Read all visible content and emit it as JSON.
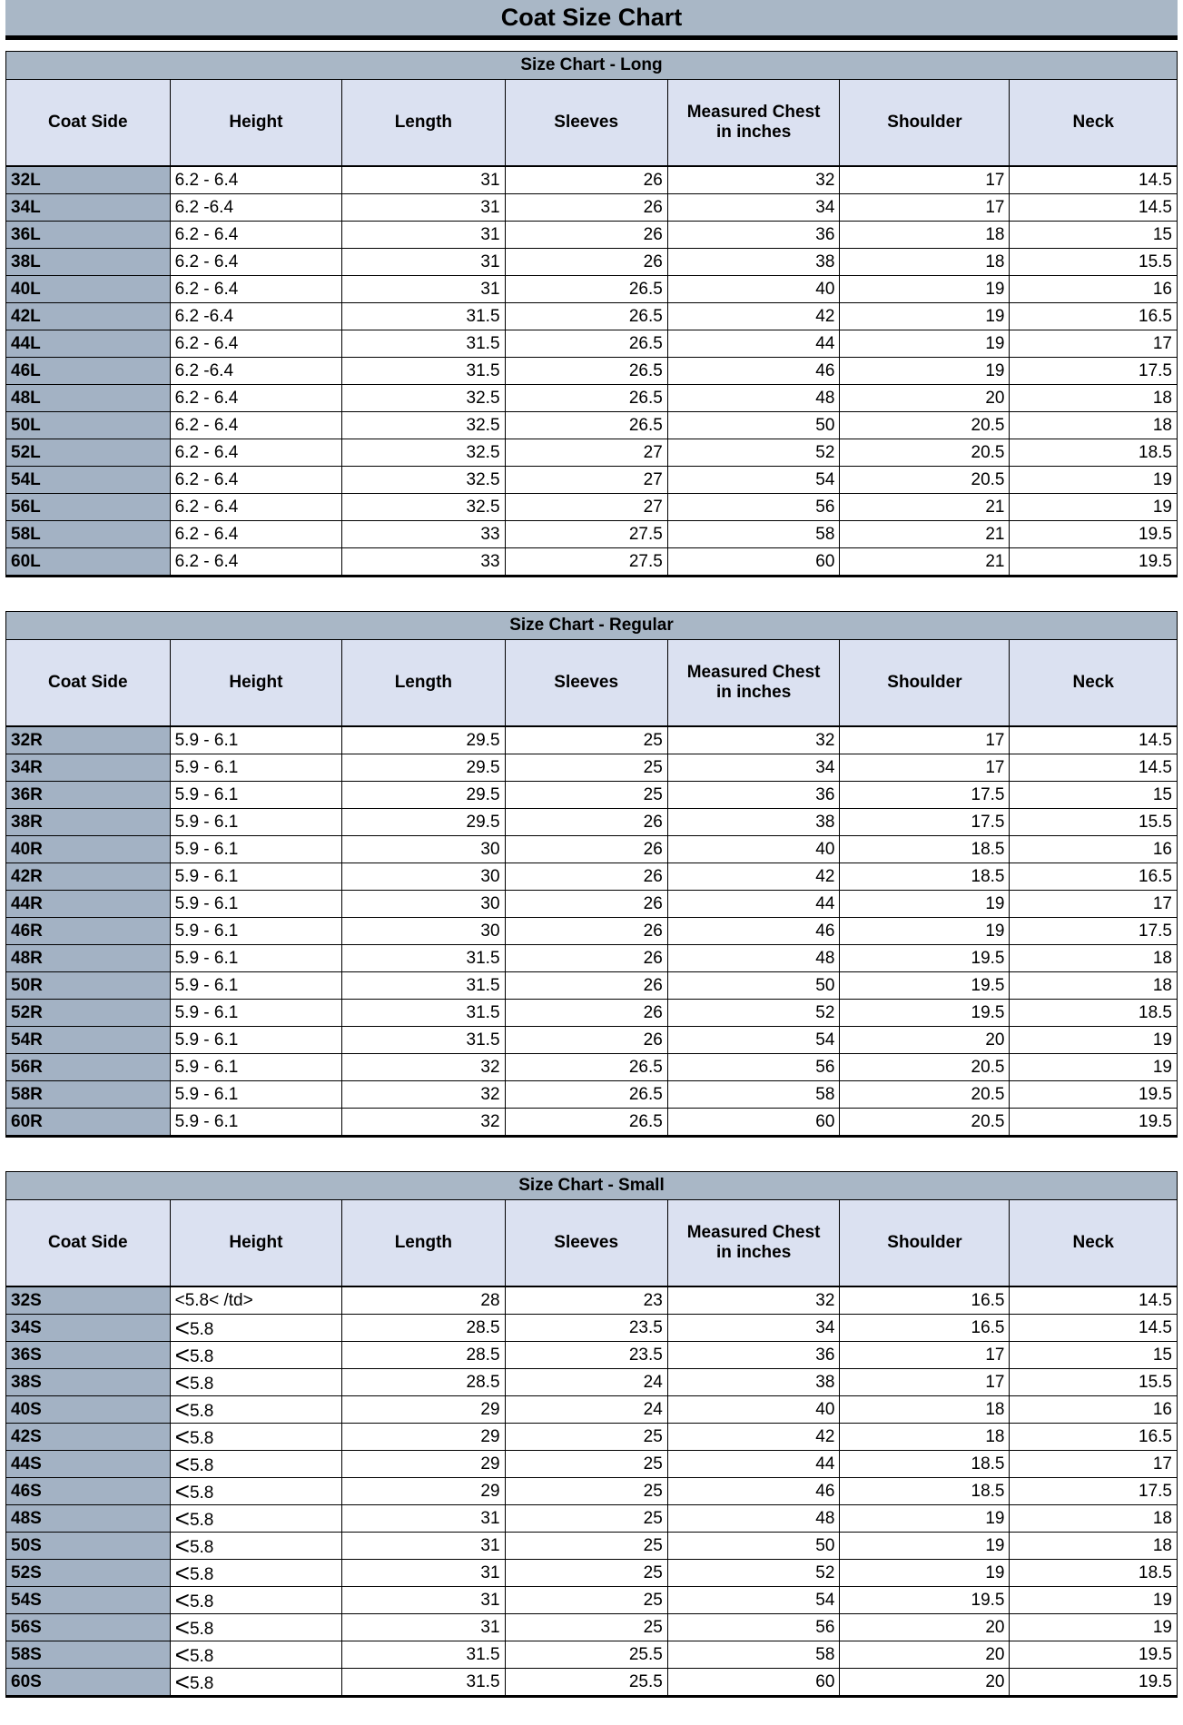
{
  "page_title": "Coat Size Chart",
  "colors": {
    "band_background": "#a9b7c6",
    "column_header_background": "#dbe1f1",
    "row_header_background": "#a3b2c4",
    "border": "#000000",
    "page_background": "#ffffff",
    "text": "#000000"
  },
  "chart_data": [
    {
      "type": "table",
      "title": "Size Chart - Long",
      "columns": [
        "Coat Side",
        "Height",
        "Length",
        "Sleeves",
        "Measured Chest in inches",
        "Shoulder",
        "Neck"
      ],
      "rows": [
        [
          "32L",
          "6.2 - 6.4",
          "31",
          "26",
          "32",
          "17",
          "14.5"
        ],
        [
          "34L",
          "6.2 -6.4",
          "31",
          "26",
          "34",
          "17",
          "14.5"
        ],
        [
          "36L",
          "6.2 - 6.4",
          "31",
          "26",
          "36",
          "18",
          "15"
        ],
        [
          "38L",
          "6.2 - 6.4",
          "31",
          "26",
          "38",
          "18",
          "15.5"
        ],
        [
          "40L",
          "6.2 - 6.4",
          "31",
          "26.5",
          "40",
          "19",
          "16"
        ],
        [
          "42L",
          "6.2 -6.4",
          "31.5",
          "26.5",
          "42",
          "19",
          "16.5"
        ],
        [
          "44L",
          "6.2 - 6.4",
          "31.5",
          "26.5",
          "44",
          "19",
          "17"
        ],
        [
          "46L",
          "6.2 -6.4",
          "31.5",
          "26.5",
          "46",
          "19",
          "17.5"
        ],
        [
          "48L",
          "6.2 - 6.4",
          "32.5",
          "26.5",
          "48",
          "20",
          "18"
        ],
        [
          "50L",
          "6.2 - 6.4",
          "32.5",
          "26.5",
          "50",
          "20.5",
          "18"
        ],
        [
          "52L",
          "6.2 - 6.4",
          "32.5",
          "27",
          "52",
          "20.5",
          "18.5"
        ],
        [
          "54L",
          "6.2 - 6.4",
          "32.5",
          "27",
          "54",
          "20.5",
          "19"
        ],
        [
          "56L",
          "6.2 - 6.4",
          "32.5",
          "27",
          "56",
          "21",
          "19"
        ],
        [
          "58L",
          "6.2 - 6.4",
          "33",
          "27.5",
          "58",
          "21",
          "19.5"
        ],
        [
          "60L",
          "6.2 - 6.4",
          "33",
          "27.5",
          "60",
          "21",
          "19.5"
        ]
      ]
    },
    {
      "type": "table",
      "title": "Size Chart - Regular",
      "columns": [
        "Coat Side",
        "Height",
        "Length",
        "Sleeves",
        "Measured Chest in inches",
        "Shoulder",
        "Neck"
      ],
      "rows": [
        [
          "32R",
          "5.9 - 6.1",
          "29.5",
          "25",
          "32",
          "17",
          "14.5"
        ],
        [
          "34R",
          "5.9 - 6.1",
          "29.5",
          "25",
          "34",
          "17",
          "14.5"
        ],
        [
          "36R",
          "5.9 - 6.1",
          "29.5",
          "25",
          "36",
          "17.5",
          "15"
        ],
        [
          "38R",
          "5.9 - 6.1",
          "29.5",
          "26",
          "38",
          "17.5",
          "15.5"
        ],
        [
          "40R",
          "5.9 - 6.1",
          "30",
          "26",
          "40",
          "18.5",
          "16"
        ],
        [
          "42R",
          "5.9 - 6.1",
          "30",
          "26",
          "42",
          "18.5",
          "16.5"
        ],
        [
          "44R",
          "5.9 - 6.1",
          "30",
          "26",
          "44",
          "19",
          "17"
        ],
        [
          "46R",
          "5.9 - 6.1",
          "30",
          "26",
          "46",
          "19",
          "17.5"
        ],
        [
          "48R",
          "5.9 - 6.1",
          "31.5",
          "26",
          "48",
          "19.5",
          "18"
        ],
        [
          "50R",
          "5.9 - 6.1",
          "31.5",
          "26",
          "50",
          "19.5",
          "18"
        ],
        [
          "52R",
          "5.9 - 6.1",
          "31.5",
          "26",
          "52",
          "19.5",
          "18.5"
        ],
        [
          "54R",
          "5.9 - 6.1",
          "31.5",
          "26",
          "54",
          "20",
          "19"
        ],
        [
          "56R",
          "5.9 - 6.1",
          "32",
          "26.5",
          "56",
          "20.5",
          "19"
        ],
        [
          "58R",
          "5.9 - 6.1",
          "32",
          "26.5",
          "58",
          "20.5",
          "19.5"
        ],
        [
          "60R",
          "5.9 - 6.1",
          "32",
          "26.5",
          "60",
          "20.5",
          "19.5"
        ]
      ]
    },
    {
      "type": "table",
      "title": "Size Chart - Small",
      "columns": [
        "Coat Side",
        "Height",
        "Length",
        "Sleeves",
        "Measured Chest in inches",
        "Shoulder",
        "Neck"
      ],
      "rows": [
        [
          "32S",
          "<5.8< /td>",
          "28",
          "23",
          "32",
          "16.5",
          "14.5"
        ],
        [
          "34S",
          "<5.8",
          "28.5",
          "23.5",
          "34",
          "16.5",
          "14.5"
        ],
        [
          "36S",
          "<5.8",
          "28.5",
          "23.5",
          "36",
          "17",
          "15"
        ],
        [
          "38S",
          "<5.8",
          "28.5",
          "24",
          "38",
          "17",
          "15.5"
        ],
        [
          "40S",
          "<5.8",
          "29",
          "24",
          "40",
          "18",
          "16"
        ],
        [
          "42S",
          "<5.8",
          "29",
          "25",
          "42",
          "18",
          "16.5"
        ],
        [
          "44S",
          "<5.8",
          "29",
          "25",
          "44",
          "18.5",
          "17"
        ],
        [
          "46S",
          "<5.8",
          "29",
          "25",
          "46",
          "18.5",
          "17.5"
        ],
        [
          "48S",
          "<5.8",
          "31",
          "25",
          "48",
          "19",
          "18"
        ],
        [
          "50S",
          "<5.8",
          "31",
          "25",
          "50",
          "19",
          "18"
        ],
        [
          "52S",
          "<5.8",
          "31",
          "25",
          "52",
          "19",
          "18.5"
        ],
        [
          "54S",
          "<5.8",
          "31",
          "25",
          "54",
          "19.5",
          "19"
        ],
        [
          "56S",
          "<5.8",
          "31",
          "25",
          "56",
          "20",
          "19"
        ],
        [
          "58S",
          "<5.8",
          "31.5",
          "25.5",
          "58",
          "20",
          "19.5"
        ],
        [
          "60S",
          "<5.8",
          "31.5",
          "25.5",
          "60",
          "20",
          "19.5"
        ]
      ]
    }
  ]
}
